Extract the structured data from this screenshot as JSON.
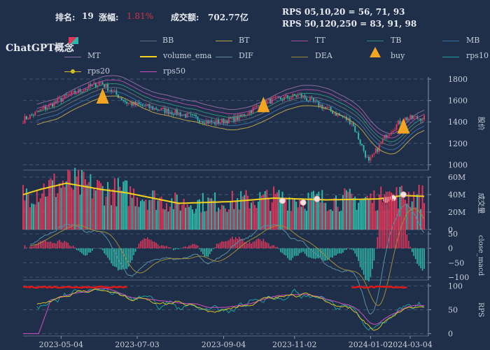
{
  "header": {
    "rank_label": "排名:",
    "rank_value": "19",
    "change_label": "涨幅:",
    "change_value": "1.81%",
    "turnover_label": "成交额:",
    "turnover_value": "702.77亿",
    "rps_short": "RPS 05,10,20 = 56,  71,  93",
    "rps_long": "RPS 50,120,250 = 83,  91,  98",
    "title": "ChatGPT概念"
  },
  "legend": [
    {
      "name": "BB",
      "color": "#5a6f7a",
      "kind": "line"
    },
    {
      "name": "BT",
      "color": "#b8a24a",
      "kind": "line"
    },
    {
      "name": "TT",
      "color": "#a64fa0",
      "kind": "line"
    },
    {
      "name": "TB",
      "color": "#2f8f7a",
      "kind": "line"
    },
    {
      "name": "MB",
      "color": "#3a6fa0",
      "kind": "line"
    },
    {
      "name": "MT",
      "color": "#8a6aa0",
      "kind": "line"
    },
    {
      "name": "volume_ema",
      "color": "#f2d21c",
      "kind": "thick"
    },
    {
      "name": "DIF",
      "color": "#5a8fa0",
      "kind": "line"
    },
    {
      "name": "DEA",
      "color": "#a08a3a",
      "kind": "line"
    },
    {
      "name": "buy",
      "color": "#f3a521",
      "kind": "triangle"
    },
    {
      "name": "rps10",
      "color": "#1fa0a0",
      "kind": "line"
    },
    {
      "name": "rps20",
      "color": "#d8c020",
      "kind": "dot"
    },
    {
      "name": "rps50",
      "color": "#d04fc0",
      "kind": "line"
    }
  ],
  "chart_data": [
    {
      "type": "line",
      "panel": "price",
      "ylabel": "股价",
      "yticks": [
        1000,
        1200,
        1400,
        1600,
        1800
      ],
      "ylim": [
        950,
        1820
      ],
      "series_desc": "candlestick with bollinger-style bands",
      "key_points": [
        [
          0,
          1420
        ],
        [
          25,
          1640
        ],
        [
          45,
          1770
        ],
        [
          60,
          1580
        ],
        [
          90,
          1480
        ],
        [
          110,
          1390
        ],
        [
          125,
          1440
        ],
        [
          140,
          1590
        ],
        [
          160,
          1650
        ],
        [
          175,
          1530
        ],
        [
          190,
          1400
        ],
        [
          200,
          1020
        ],
        [
          210,
          1280
        ],
        [
          220,
          1430
        ],
        [
          232,
          1440
        ]
      ]
    },
    {
      "type": "bar",
      "panel": "volume",
      "ylabel": "成交量",
      "yticks": [
        "0",
        "20M",
        "40M",
        "60M"
      ],
      "ylim": [
        0,
        60
      ],
      "ema_key_points": [
        [
          0,
          40
        ],
        [
          10,
          46
        ],
        [
          25,
          53
        ],
        [
          45,
          46
        ],
        [
          60,
          42
        ],
        [
          90,
          30
        ],
        [
          120,
          32
        ],
        [
          145,
          36
        ],
        [
          175,
          34
        ],
        [
          205,
          35
        ],
        [
          220,
          39
        ],
        [
          232,
          38
        ]
      ]
    },
    {
      "type": "bar",
      "panel": "macd",
      "ylabel": "close_macd",
      "yticks": [
        "50",
        "0",
        "−50",
        "−100"
      ],
      "ylim": [
        -110,
        60
      ]
    },
    {
      "type": "line",
      "panel": "rps",
      "ylabel": "RPS",
      "yticks": [
        "0",
        "50",
        "100"
      ],
      "ylim": [
        -5,
        105
      ],
      "xticks": [
        "2023-05-04",
        "2023-07-03",
        "2023-09-04",
        "2023-11-02",
        "2024-01-02",
        "2024-03-04"
      ]
    }
  ]
}
